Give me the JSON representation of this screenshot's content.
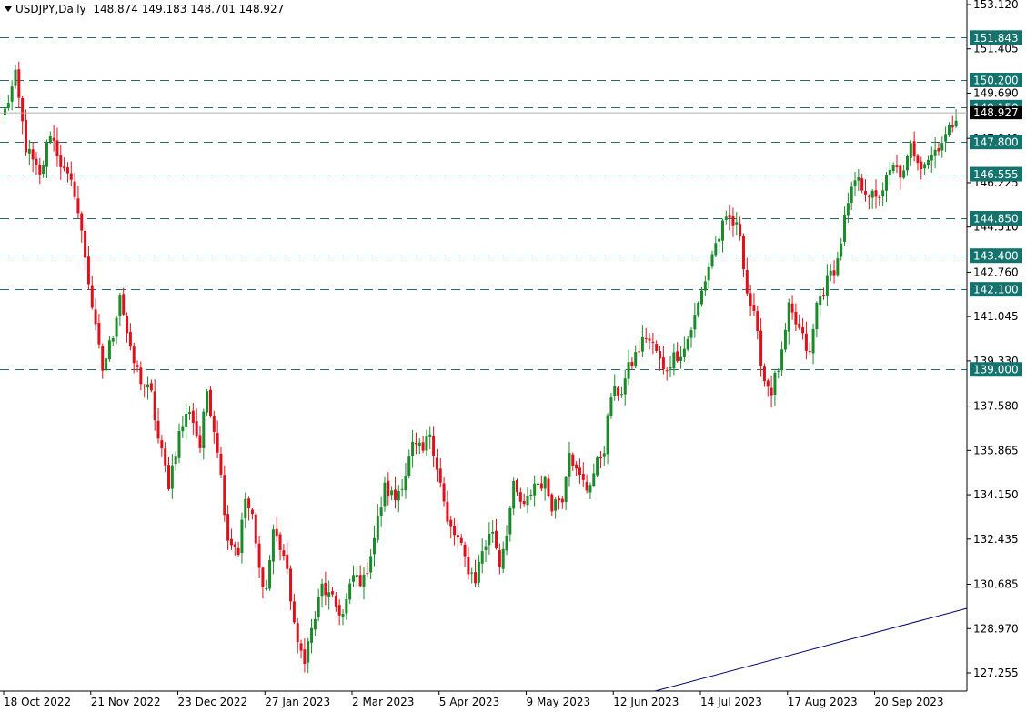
{
  "header": {
    "symbol": "USDJPY,Daily",
    "open": "148.874",
    "high": "149.183",
    "low": "148.701",
    "close": "148.927"
  },
  "colors": {
    "bull": "#1a8a2a",
    "bear": "#e0101a",
    "level_line": "#1f6e6e",
    "level_label_bg": "#15736e",
    "axis": "#000000",
    "trendline": "#00006e"
  },
  "chart_data": {
    "type": "candlestick",
    "title": "USDJPY,Daily",
    "y_tick_labels": [
      "153.120",
      "151.405",
      "149.690",
      "147.940",
      "146.225",
      "144.510",
      "142.760",
      "141.045",
      "139.330",
      "137.580",
      "135.865",
      "134.150",
      "132.435",
      "130.685",
      "128.970",
      "127.255"
    ],
    "current_price_label": "148.927",
    "x_tick_labels": [
      "18 Oct 2022",
      "21 Nov 2022",
      "23 Dec 2022",
      "27 Jan 2023",
      "2 Mar 2023",
      "5 Apr 2023",
      "9 May 2023",
      "12 Jun 2023",
      "14 Jul 2023",
      "17 Aug 2023",
      "20 Sep 2023"
    ],
    "horizontal_levels": [
      {
        "price": 151.843,
        "label": "151.843"
      },
      {
        "price": 150.2,
        "label": "150.200"
      },
      {
        "price": 149.15,
        "label": "149.150"
      },
      {
        "price": 147.8,
        "label": "147.800"
      },
      {
        "price": 146.555,
        "label": "146.555"
      },
      {
        "price": 144.85,
        "label": "144.850"
      },
      {
        "price": 143.4,
        "label": "143.400"
      },
      {
        "price": 142.1,
        "label": "142.100"
      },
      {
        "price": 139.0,
        "label": "139.000"
      }
    ],
    "price_path": [
      [
        0,
        149.0
      ],
      [
        3,
        150.3
      ],
      [
        6,
        147.6
      ],
      [
        10,
        146.4
      ],
      [
        13,
        148.2
      ],
      [
        17,
        146.6
      ],
      [
        20,
        145.9
      ],
      [
        23,
        143.4
      ],
      [
        26,
        140.5
      ],
      [
        28,
        139.0
      ],
      [
        31,
        140.4
      ],
      [
        33,
        142.0
      ],
      [
        36,
        139.6
      ],
      [
        39,
        138.6
      ],
      [
        42,
        138.0
      ],
      [
        44,
        136.3
      ],
      [
        47,
        134.6
      ],
      [
        50,
        136.5
      ],
      [
        53,
        137.5
      ],
      [
        56,
        136.0
      ],
      [
        58,
        138.2
      ],
      [
        61,
        136.0
      ],
      [
        64,
        132.5
      ],
      [
        67,
        132.0
      ],
      [
        69,
        134.0
      ],
      [
        71,
        133.2
      ],
      [
        73,
        131.2
      ],
      [
        75,
        130.5
      ],
      [
        77,
        132.8
      ],
      [
        80,
        131.8
      ],
      [
        82,
        130.2
      ],
      [
        84,
        128.2
      ],
      [
        86,
        127.9
      ],
      [
        89,
        129.4
      ],
      [
        91,
        130.6
      ],
      [
        94,
        130.0
      ],
      [
        97,
        129.5
      ],
      [
        100,
        131.0
      ],
      [
        103,
        130.8
      ],
      [
        106,
        132.5
      ],
      [
        109,
        134.4
      ],
      [
        112,
        134.0
      ],
      [
        115,
        135.0
      ],
      [
        117,
        136.0
      ],
      [
        120,
        135.8
      ],
      [
        122,
        136.6
      ],
      [
        125,
        134.6
      ],
      [
        127,
        133.0
      ],
      [
        130,
        132.4
      ],
      [
        133,
        131.3
      ],
      [
        135,
        130.9
      ],
      [
        137,
        132.0
      ],
      [
        140,
        132.8
      ],
      [
        142,
        131.5
      ],
      [
        144,
        132.8
      ],
      [
        146,
        134.4
      ],
      [
        149,
        133.6
      ],
      [
        152,
        134.6
      ],
      [
        155,
        134.6
      ],
      [
        157,
        133.8
      ],
      [
        160,
        134.1
      ],
      [
        162,
        136.0
      ],
      [
        164,
        135.0
      ],
      [
        167,
        134.4
      ],
      [
        169,
        135.0
      ],
      [
        172,
        136.0
      ],
      [
        174,
        138.0
      ],
      [
        177,
        138.2
      ],
      [
        179,
        139.0
      ],
      [
        182,
        139.8
      ],
      [
        184,
        140.3
      ],
      [
        187,
        139.7
      ],
      [
        189,
        138.9
      ],
      [
        192,
        139.5
      ],
      [
        195,
        139.8
      ],
      [
        198,
        141.0
      ],
      [
        200,
        142.0
      ],
      [
        203,
        143.5
      ],
      [
        206,
        144.5
      ],
      [
        208,
        144.8
      ],
      [
        211,
        144.3
      ],
      [
        213,
        142.0
      ],
      [
        215,
        141.0
      ],
      [
        218,
        138.6
      ],
      [
        220,
        138.2
      ],
      [
        223,
        139.5
      ],
      [
        225,
        141.3
      ],
      [
        228,
        140.5
      ],
      [
        231,
        139.5
      ],
      [
        233,
        141.5
      ],
      [
        236,
        142.4
      ],
      [
        239,
        143.2
      ],
      [
        241,
        144.8
      ],
      [
        244,
        146.3
      ],
      [
        247,
        146.0
      ],
      [
        250,
        145.5
      ],
      [
        253,
        146.3
      ],
      [
        255,
        146.8
      ],
      [
        258,
        146.5
      ],
      [
        260,
        147.6
      ],
      [
        263,
        147.0
      ],
      [
        266,
        147.3
      ],
      [
        268,
        147.7
      ],
      [
        271,
        148.2
      ],
      [
        273,
        148.9
      ]
    ]
  }
}
